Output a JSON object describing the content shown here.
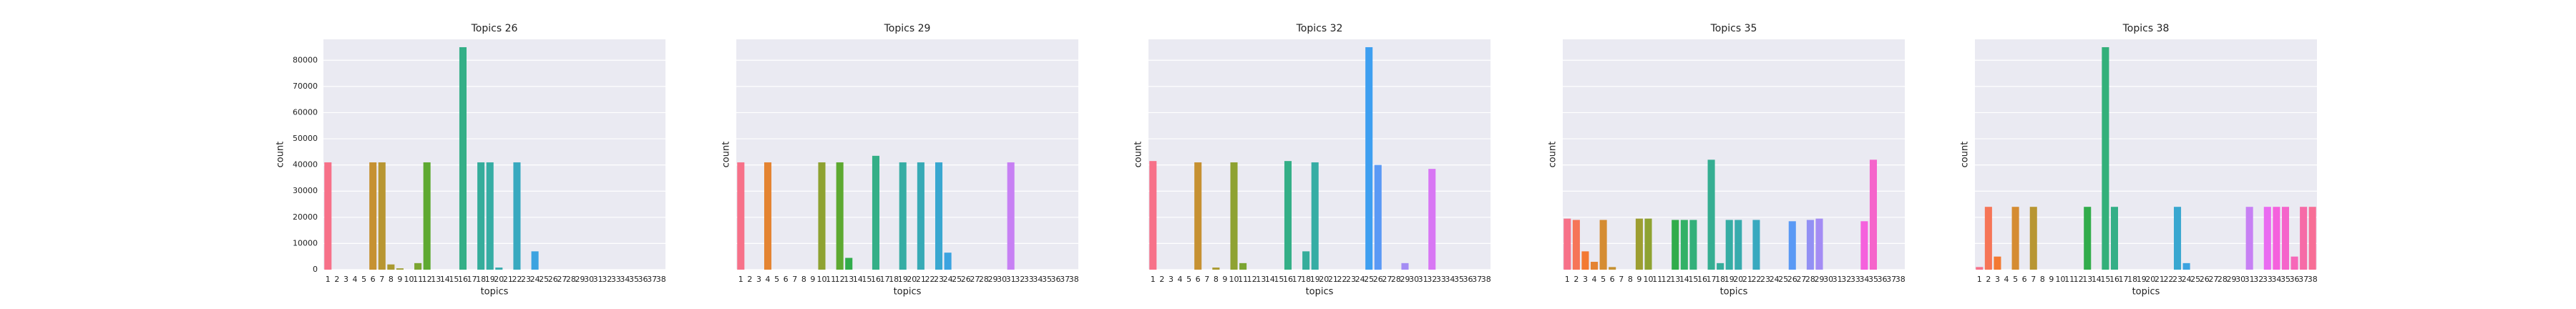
{
  "chart_data": [
    {
      "type": "bar",
      "title": "Topics 26",
      "xlabel": "topics",
      "ylabel": "count",
      "categories": [
        1,
        2,
        3,
        4,
        5,
        6,
        7,
        8,
        9,
        10,
        11,
        12,
        13,
        14,
        15,
        16,
        17,
        18,
        19,
        20,
        21,
        22,
        23,
        24,
        25,
        26,
        27,
        28,
        29,
        30,
        31,
        32,
        33,
        34,
        35,
        36,
        37,
        38
      ],
      "values": [
        41000,
        0,
        0,
        0,
        0,
        41000,
        41000,
        2000,
        500,
        0,
        2500,
        41000,
        0,
        0,
        0,
        85000,
        0,
        41000,
        41000,
        800,
        0,
        41000,
        0,
        7000,
        0,
        0,
        0,
        0,
        0,
        0,
        0,
        0,
        0,
        0,
        0,
        0,
        0,
        0
      ],
      "colors": [
        "#f77189",
        "#f67557",
        "#f37932",
        "#e48432",
        "#d58c32",
        "#c69132",
        "#b89632",
        "#aa9a31",
        "#9d9e31",
        "#8ea231",
        "#7ba531",
        "#5ea931",
        "#31ac4b",
        "#32b166",
        "#33b07a",
        "#34af87",
        "#35ae92",
        "#35ad9b",
        "#36ada4",
        "#37abad",
        "#37aab6",
        "#38a9bf",
        "#39a7d0",
        "#3ba3e0",
        "#3e9ff0",
        "#5a99f5",
        "#7a94f5",
        "#9290f4",
        "#a48cf4",
        "#b587f4",
        "#c780f4",
        "#d876f4",
        "#ea6bf1",
        "#f561dd",
        "#f564cb",
        "#f668b9",
        "#f66ba7",
        "#f76e96"
      ],
      "ylim": [
        0,
        88000
      ],
      "yticks": [
        0,
        10000,
        20000,
        30000,
        40000,
        50000,
        60000,
        70000,
        80000
      ],
      "grid": true
    },
    {
      "type": "bar",
      "title": "Topics 29",
      "xlabel": "topics",
      "ylabel": "count",
      "sharey": true,
      "categories": [
        1,
        2,
        3,
        4,
        5,
        6,
        7,
        8,
        9,
        10,
        11,
        12,
        13,
        14,
        15,
        16,
        17,
        18,
        19,
        20,
        21,
        22,
        23,
        24,
        25,
        26,
        27,
        28,
        29,
        30,
        31,
        32,
        33,
        34,
        35,
        36,
        37,
        38
      ],
      "values": [
        41000,
        0,
        0,
        41000,
        0,
        0,
        0,
        0,
        0,
        41000,
        0,
        41000,
        4500,
        0,
        0,
        43500,
        0,
        0,
        41000,
        0,
        41000,
        0,
        41000,
        6500,
        0,
        0,
        0,
        0,
        0,
        0,
        41000,
        0,
        0,
        0,
        0,
        0,
        0,
        0
      ],
      "colors": [
        "#f77189",
        "#f67557",
        "#f37932",
        "#e48432",
        "#d58c32",
        "#c69132",
        "#b89632",
        "#aa9a31",
        "#9d9e31",
        "#8ea231",
        "#7ba531",
        "#5ea931",
        "#31ac4b",
        "#32b166",
        "#33b07a",
        "#34af87",
        "#35ae92",
        "#35ad9b",
        "#36ada4",
        "#37abad",
        "#37aab6",
        "#38a9bf",
        "#39a7d0",
        "#3ba3e0",
        "#3e9ff0",
        "#5a99f5",
        "#7a94f5",
        "#9290f4",
        "#a48cf4",
        "#b587f4",
        "#c780f4",
        "#d876f4",
        "#ea6bf1",
        "#f561dd",
        "#f564cb",
        "#f668b9",
        "#f66ba7",
        "#f76e96"
      ],
      "ylim": [
        0,
        88000
      ],
      "yticks": [
        0,
        10000,
        20000,
        30000,
        40000,
        50000,
        60000,
        70000,
        80000
      ],
      "grid": true
    },
    {
      "type": "bar",
      "title": "Topics 32",
      "xlabel": "topics",
      "ylabel": "count",
      "sharey": true,
      "categories": [
        1,
        2,
        3,
        4,
        5,
        6,
        7,
        8,
        9,
        10,
        11,
        12,
        13,
        14,
        15,
        16,
        17,
        18,
        19,
        20,
        21,
        22,
        23,
        24,
        25,
        26,
        27,
        28,
        29,
        30,
        31,
        32,
        33,
        34,
        35,
        36,
        37,
        38
      ],
      "values": [
        41500,
        0,
        0,
        0,
        0,
        41000,
        0,
        800,
        0,
        41000,
        2500,
        0,
        0,
        0,
        0,
        41500,
        0,
        7000,
        41000,
        0,
        0,
        0,
        0,
        0,
        85000,
        40000,
        0,
        0,
        2500,
        0,
        0,
        38500,
        0,
        0,
        0,
        0,
        0,
        0
      ],
      "colors": [
        "#f77189",
        "#f67557",
        "#f37932",
        "#e48432",
        "#d58c32",
        "#c69132",
        "#b89632",
        "#aa9a31",
        "#9d9e31",
        "#8ea231",
        "#7ba531",
        "#5ea931",
        "#31ac4b",
        "#32b166",
        "#33b07a",
        "#34af87",
        "#35ae92",
        "#35ad9b",
        "#36ada4",
        "#37abad",
        "#37aab6",
        "#38a9bf",
        "#39a7d0",
        "#3ba3e0",
        "#3e9ff0",
        "#5a99f5",
        "#7a94f5",
        "#9290f4",
        "#a48cf4",
        "#b587f4",
        "#c780f4",
        "#d876f4",
        "#ea6bf1",
        "#f561dd",
        "#f564cb",
        "#f668b9",
        "#f66ba7",
        "#f76e96"
      ],
      "ylim": [
        0,
        88000
      ],
      "yticks": [
        0,
        10000,
        20000,
        30000,
        40000,
        50000,
        60000,
        70000,
        80000
      ],
      "grid": true
    },
    {
      "type": "bar",
      "title": "Topics 35",
      "xlabel": "topics",
      "ylabel": "count",
      "sharey": true,
      "categories": [
        1,
        2,
        3,
        4,
        5,
        6,
        7,
        8,
        9,
        10,
        11,
        12,
        13,
        14,
        15,
        16,
        17,
        18,
        19,
        20,
        21,
        22,
        23,
        24,
        25,
        26,
        27,
        28,
        29,
        30,
        31,
        32,
        33,
        34,
        35,
        36,
        37,
        38
      ],
      "values": [
        19500,
        19000,
        7000,
        3000,
        19000,
        1000,
        0,
        0,
        19500,
        19500,
        0,
        0,
        19000,
        19000,
        19000,
        0,
        42000,
        2500,
        19000,
        19000,
        0,
        19000,
        0,
        0,
        0,
        18500,
        0,
        19000,
        19500,
        0,
        0,
        0,
        0,
        18500,
        42000,
        0,
        0,
        0
      ],
      "colors": [
        "#f77189",
        "#f67557",
        "#f37932",
        "#e48432",
        "#d58c32",
        "#c69132",
        "#b89632",
        "#aa9a31",
        "#9d9e31",
        "#8ea231",
        "#7ba531",
        "#5ea931",
        "#31ac4b",
        "#32b166",
        "#33b07a",
        "#34af87",
        "#35ae92",
        "#35ad9b",
        "#36ada4",
        "#37abad",
        "#37aab6",
        "#38a9bf",
        "#39a7d0",
        "#3ba3e0",
        "#3e9ff0",
        "#5a99f5",
        "#7a94f5",
        "#9290f4",
        "#a48cf4",
        "#b587f4",
        "#c780f4",
        "#d876f4",
        "#ea6bf1",
        "#f561dd",
        "#f564cb",
        "#f668b9",
        "#f66ba7",
        "#f76e96"
      ],
      "ylim": [
        0,
        88000
      ],
      "yticks": [
        0,
        10000,
        20000,
        30000,
        40000,
        50000,
        60000,
        70000,
        80000
      ],
      "grid": true
    },
    {
      "type": "bar",
      "title": "Topics 38",
      "xlabel": "topics",
      "ylabel": "count",
      "sharey": true,
      "categories": [
        1,
        2,
        3,
        4,
        5,
        6,
        7,
        8,
        9,
        10,
        11,
        12,
        13,
        14,
        15,
        16,
        17,
        18,
        19,
        20,
        21,
        22,
        23,
        24,
        25,
        26,
        27,
        28,
        29,
        30,
        31,
        32,
        33,
        34,
        35,
        36,
        37,
        38
      ],
      "values": [
        1000,
        24000,
        5000,
        0,
        24000,
        0,
        24000,
        0,
        0,
        0,
        0,
        0,
        24000,
        0,
        85000,
        24000,
        0,
        0,
        0,
        0,
        0,
        0,
        24000,
        2500,
        0,
        0,
        0,
        0,
        0,
        0,
        24000,
        0,
        24000,
        24000,
        24000,
        5000,
        24000,
        24000
      ],
      "colors": [
        "#f77189",
        "#f67557",
        "#f37932",
        "#e48432",
        "#d58c32",
        "#c69132",
        "#b89632",
        "#aa9a31",
        "#9d9e31",
        "#8ea231",
        "#7ba531",
        "#5ea931",
        "#31ac4b",
        "#32b166",
        "#33b07a",
        "#34af87",
        "#35ae92",
        "#35ad9b",
        "#36ada4",
        "#37abad",
        "#37aab6",
        "#38a9bf",
        "#39a7d0",
        "#3ba3e0",
        "#3e9ff0",
        "#5a99f5",
        "#7a94f5",
        "#9290f4",
        "#a48cf4",
        "#b587f4",
        "#c780f4",
        "#d876f4",
        "#ea6bf1",
        "#f561dd",
        "#f564cb",
        "#f668b9",
        "#f66ba7",
        "#f76e96"
      ],
      "ylim": [
        0,
        88000
      ],
      "yticks": [
        0,
        10000,
        20000,
        30000,
        40000,
        50000,
        60000,
        70000,
        80000
      ],
      "grid": true
    }
  ]
}
